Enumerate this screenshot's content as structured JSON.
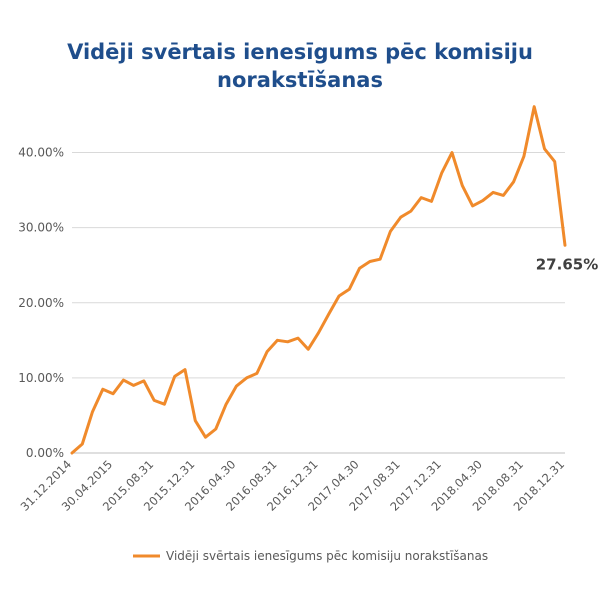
{
  "chart_data": {
    "type": "line",
    "title": "Vidēji svērtais ienesīgums pēc komisiju norakstīšanas",
    "xlabel": "",
    "ylabel": "",
    "ylim": [
      0,
      45
    ],
    "y_ticks": [
      "0.00%",
      "10.00%",
      "20.00%",
      "30.00%",
      "40.00%"
    ],
    "y_tick_values": [
      0,
      10,
      20,
      30,
      40
    ],
    "x_tick_labels": [
      "31.12.2014",
      "30.04.2015",
      "2015.08.31",
      "2015.12.31",
      "2016.04.30",
      "2016.08.31",
      "2016.12.31",
      "2017.04.30",
      "2017.08.31",
      "2017.12.31",
      "2018.04.30",
      "2018.08.31",
      "2018.12.31"
    ],
    "x_tick_indices": [
      0,
      4,
      8,
      12,
      16,
      20,
      24,
      28,
      32,
      36,
      40,
      44,
      48
    ],
    "grid": true,
    "legend_position": "bottom",
    "series": [
      {
        "name": "Vidēji svērtais ienesīgums pēc komisiju norakstīšanas",
        "color": "#f08a2b",
        "values": [
          0.0,
          1.2,
          5.5,
          8.5,
          7.9,
          9.7,
          9.0,
          9.6,
          7.0,
          6.5,
          10.2,
          11.1,
          4.3,
          2.1,
          3.2,
          6.5,
          8.9,
          10.0,
          10.6,
          13.5,
          15.0,
          14.8,
          15.3,
          13.8,
          16.0,
          18.5,
          20.9,
          21.8,
          24.6,
          25.5,
          25.8,
          29.5,
          31.4,
          32.2,
          34.0,
          33.5,
          37.3,
          40.0,
          35.6,
          32.9,
          33.6,
          34.7,
          34.3,
          36.1,
          39.5,
          46.1,
          40.5,
          38.8,
          27.65
        ]
      }
    ],
    "end_label": "27.65%",
    "end_label_value": 27.65
  }
}
